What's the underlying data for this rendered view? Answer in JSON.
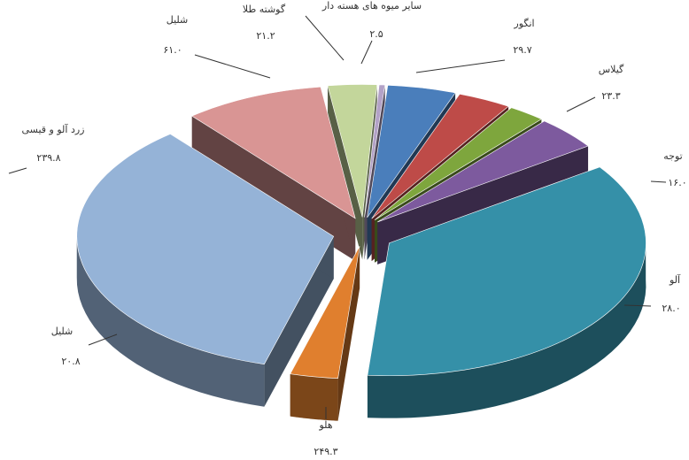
{
  "chart_data": {
    "type": "pie",
    "style": "exploded-3d",
    "title": "",
    "slices": [
      {
        "label": "انگور",
        "value_label": "۲۹.۷",
        "value": 29.7,
        "color": "#4a7ebb"
      },
      {
        "label": "گیلاس",
        "value_label": "۲۳.۳",
        "value": 23.3,
        "color": "#be4b48"
      },
      {
        "label": "توجه",
        "value_label": "۱۶.۰",
        "value": 16.0,
        "color": "#7ea63d"
      },
      {
        "label": "آلو",
        "value_label": "۲۸.۰",
        "value": 28.0,
        "color": "#7d5a9e"
      },
      {
        "label": "هلو",
        "value_label": "۲۴۹.۳",
        "value": 249.3,
        "color": "#3590a8"
      },
      {
        "label": "شلیل",
        "value_label": "۲۰.۸",
        "value": 20.8,
        "color": "#e07f2e"
      },
      {
        "label": "زرد آلو و قیسی",
        "value_label": "۲۳۹.۸",
        "value": 239.8,
        "color": "#95b3d7"
      },
      {
        "label": "شلیل",
        "value_label": "۶۱.۰",
        "value": 61.0,
        "color": "#d99594"
      },
      {
        "label": "گوشته طلا",
        "value_label": "۲۱.۲",
        "value": 21.2,
        "color": "#c3d69b"
      },
      {
        "label": "سایر میوه های هسته دار",
        "value_label": "۲.۵",
        "value": 2.5,
        "color": "#b3a2c7"
      }
    ]
  }
}
